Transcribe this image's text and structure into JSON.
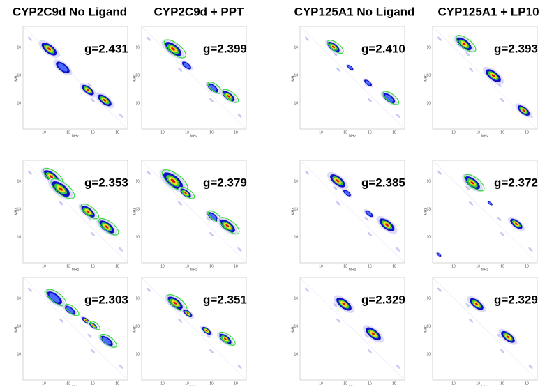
{
  "columns": [
    "CYP2C9d No Ligand",
    "CYP2C9d + PPT",
    "CYP125A1 No Ligand",
    "CYP125A1 + LP10"
  ],
  "rows": [
    [
      "g=2.431",
      "g=2.399",
      "g=2.410",
      "g=2.393"
    ],
    [
      "g=2.353",
      "g=2.379",
      "g=2.385",
      "g=2.372"
    ],
    [
      "g=2.303",
      "g=2.351",
      "g=2.329",
      "g=2.329"
    ]
  ],
  "axis": {
    "label": "MHz",
    "xticks": [
      "10",
      "13",
      "16",
      "18"
    ],
    "yticks": [
      "16",
      "13",
      "10"
    ]
  }
}
